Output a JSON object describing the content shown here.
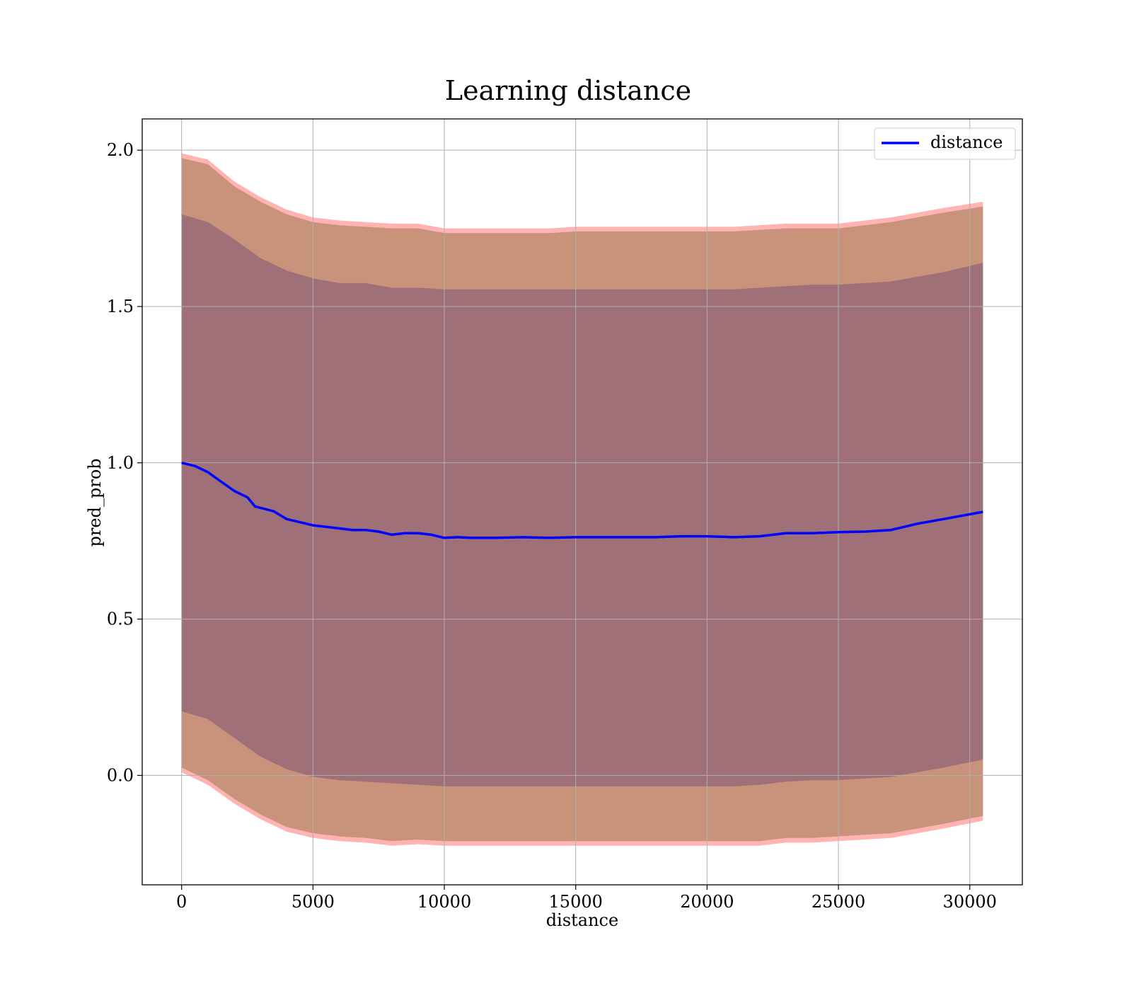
{
  "chart_data": {
    "type": "line",
    "title": "Learning distance",
    "xlabel": "distance",
    "ylabel": "pred_prob",
    "xlim": [
      -1500,
      32000
    ],
    "ylim": [
      -0.35,
      2.1
    ],
    "xticks": [
      0,
      5000,
      10000,
      15000,
      20000,
      25000,
      30000
    ],
    "xtick_labels": [
      "0",
      "5000",
      "10000",
      "15000",
      "20000",
      "25000",
      "30000"
    ],
    "yticks": [
      0.0,
      0.5,
      1.0,
      1.5,
      2.0
    ],
    "ytick_labels": [
      "0.0",
      "0.5",
      "1.0",
      "1.5",
      "2.0"
    ],
    "grid": true,
    "legend_position": "top-right",
    "series": [
      {
        "name": "distance",
        "color": "#0000ff",
        "x": [
          0,
          500,
          1000,
          1500,
          2000,
          2500,
          2800,
          3500,
          4000,
          4500,
          5000,
          5500,
          6000,
          6500,
          7000,
          7500,
          8000,
          8500,
          9000,
          9500,
          10000,
          10500,
          11000,
          12000,
          13000,
          14000,
          15000,
          16000,
          17000,
          18000,
          19000,
          20000,
          21000,
          22000,
          23000,
          24000,
          25000,
          26000,
          27000,
          28000,
          29000,
          30500
        ],
        "y": [
          1.0,
          0.99,
          0.97,
          0.94,
          0.91,
          0.89,
          0.86,
          0.845,
          0.82,
          0.81,
          0.8,
          0.795,
          0.79,
          0.785,
          0.785,
          0.78,
          0.77,
          0.775,
          0.775,
          0.77,
          0.76,
          0.762,
          0.76,
          0.76,
          0.762,
          0.76,
          0.762,
          0.762,
          0.762,
          0.762,
          0.765,
          0.765,
          0.762,
          0.765,
          0.775,
          0.775,
          0.778,
          0.78,
          0.785,
          0.805,
          0.82,
          0.843
        ]
      }
    ],
    "bands": [
      {
        "color": "#ff9999",
        "outer": true,
        "x": [
          0,
          1000,
          2000,
          3000,
          4000,
          5000,
          6000,
          7000,
          8000,
          9000,
          10000,
          11000,
          12000,
          13000,
          14000,
          15000,
          16000,
          17000,
          18000,
          19000,
          20000,
          21000,
          22000,
          23000,
          24000,
          25000,
          26000,
          27000,
          28000,
          29000,
          30500
        ],
        "upper": [
          1.99,
          1.97,
          1.9,
          1.85,
          1.81,
          1.785,
          1.775,
          1.77,
          1.765,
          1.765,
          1.75,
          1.75,
          1.75,
          1.75,
          1.75,
          1.755,
          1.755,
          1.755,
          1.755,
          1.755,
          1.755,
          1.755,
          1.76,
          1.765,
          1.765,
          1.765,
          1.775,
          1.785,
          1.8,
          1.815,
          1.835
        ],
        "lower": [
          0.01,
          -0.03,
          -0.09,
          -0.14,
          -0.18,
          -0.2,
          -0.21,
          -0.215,
          -0.225,
          -0.22,
          -0.225,
          -0.225,
          -0.225,
          -0.225,
          -0.225,
          -0.225,
          -0.225,
          -0.225,
          -0.225,
          -0.225,
          -0.225,
          -0.225,
          -0.225,
          -0.215,
          -0.215,
          -0.21,
          -0.205,
          -0.2,
          -0.185,
          -0.17,
          -0.145
        ]
      },
      {
        "color": "#c8937a",
        "outer": false,
        "x": [
          0,
          1000,
          2000,
          3000,
          4000,
          5000,
          6000,
          7000,
          8000,
          9000,
          10000,
          11000,
          12000,
          13000,
          14000,
          15000,
          16000,
          17000,
          18000,
          19000,
          20000,
          21000,
          22000,
          23000,
          24000,
          25000,
          26000,
          27000,
          28000,
          29000,
          30500
        ],
        "upper": [
          1.975,
          1.955,
          1.885,
          1.835,
          1.795,
          1.77,
          1.76,
          1.755,
          1.75,
          1.75,
          1.735,
          1.735,
          1.735,
          1.735,
          1.735,
          1.74,
          1.74,
          1.74,
          1.74,
          1.74,
          1.74,
          1.74,
          1.745,
          1.75,
          1.75,
          1.75,
          1.76,
          1.77,
          1.785,
          1.8,
          1.82
        ],
        "lower": [
          0.025,
          -0.015,
          -0.075,
          -0.125,
          -0.165,
          -0.185,
          -0.195,
          -0.2,
          -0.21,
          -0.205,
          -0.21,
          -0.21,
          -0.21,
          -0.21,
          -0.21,
          -0.21,
          -0.21,
          -0.21,
          -0.21,
          -0.21,
          -0.21,
          -0.21,
          -0.21,
          -0.2,
          -0.2,
          -0.195,
          -0.19,
          -0.185,
          -0.17,
          -0.155,
          -0.13
        ]
      },
      {
        "color": "#a07078",
        "outer": false,
        "x": [
          0,
          1000,
          2000,
          3000,
          4000,
          5000,
          6000,
          7000,
          8000,
          9000,
          10000,
          11000,
          12000,
          13000,
          14000,
          15000,
          16000,
          17000,
          18000,
          19000,
          20000,
          21000,
          22000,
          23000,
          24000,
          25000,
          26000,
          27000,
          28000,
          29000,
          30500
        ],
        "upper": [
          1.795,
          1.77,
          1.715,
          1.655,
          1.615,
          1.59,
          1.575,
          1.575,
          1.56,
          1.56,
          1.555,
          1.555,
          1.555,
          1.555,
          1.555,
          1.555,
          1.555,
          1.555,
          1.555,
          1.555,
          1.555,
          1.555,
          1.56,
          1.565,
          1.57,
          1.57,
          1.575,
          1.58,
          1.595,
          1.61,
          1.64
        ],
        "lower": [
          0.205,
          0.18,
          0.12,
          0.06,
          0.02,
          -0.005,
          -0.015,
          -0.02,
          -0.025,
          -0.03,
          -0.035,
          -0.035,
          -0.035,
          -0.035,
          -0.035,
          -0.035,
          -0.035,
          -0.035,
          -0.035,
          -0.035,
          -0.035,
          -0.035,
          -0.03,
          -0.02,
          -0.015,
          -0.015,
          -0.01,
          -0.005,
          0.01,
          0.025,
          0.05
        ]
      }
    ]
  }
}
